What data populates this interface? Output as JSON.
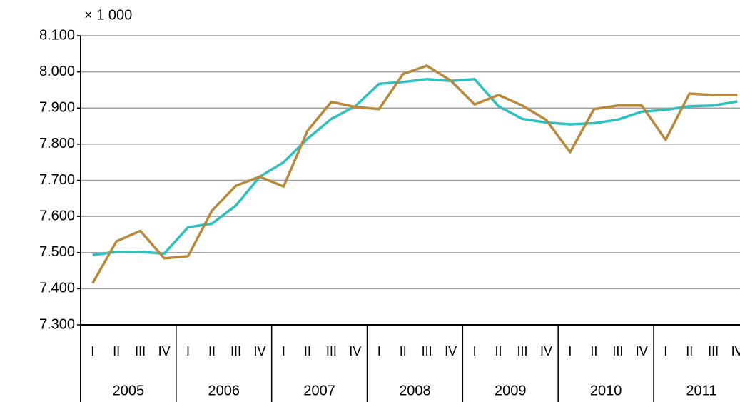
{
  "chart_data": {
    "type": "line",
    "unit_label": "× 1 000",
    "categories": [
      "I",
      "II",
      "III",
      "IV",
      "I",
      "II",
      "III",
      "IV",
      "I",
      "II",
      "III",
      "IV",
      "I",
      "II",
      "III",
      "IV",
      "I",
      "II",
      "III",
      "IV",
      "I",
      "II",
      "III",
      "IV",
      "I",
      "II",
      "III",
      "IV"
    ],
    "groups": [
      "2005",
      "2006",
      "2007",
      "2008",
      "2009",
      "2010",
      "2011"
    ],
    "series": [
      {
        "color": "#2ebfc0",
        "values": [
          7493,
          7502,
          7502,
          7497,
          7570,
          7580,
          7630,
          7710,
          7750,
          7815,
          7870,
          7905,
          7967,
          7972,
          7980,
          7975,
          7980,
          7905,
          7870,
          7860,
          7855,
          7858,
          7868,
          7890,
          7895,
          7905,
          7907,
          7918
        ]
      },
      {
        "color": "#b8893a",
        "values": [
          7415,
          7531,
          7560,
          7484,
          7490,
          7616,
          7685,
          7710,
          7683,
          7837,
          7917,
          7903,
          7897,
          7994,
          8017,
          7976,
          7910,
          7936,
          7907,
          7867,
          7778,
          7897,
          7907,
          7907,
          7812,
          7940,
          7936,
          7936
        ]
      }
    ],
    "ylim": [
      7300,
      8100
    ],
    "yticks": [
      {
        "value": 7300,
        "label": "7.300"
      },
      {
        "value": 7400,
        "label": "7.400"
      },
      {
        "value": 7500,
        "label": "7.500"
      },
      {
        "value": 7600,
        "label": "7.600"
      },
      {
        "value": 7700,
        "label": "7.700"
      },
      {
        "value": 7800,
        "label": "7.800"
      },
      {
        "value": 7900,
        "label": "7.900"
      },
      {
        "value": 8000,
        "label": "8.000"
      },
      {
        "value": 8100,
        "label": "8.100"
      }
    ],
    "grid": true
  }
}
